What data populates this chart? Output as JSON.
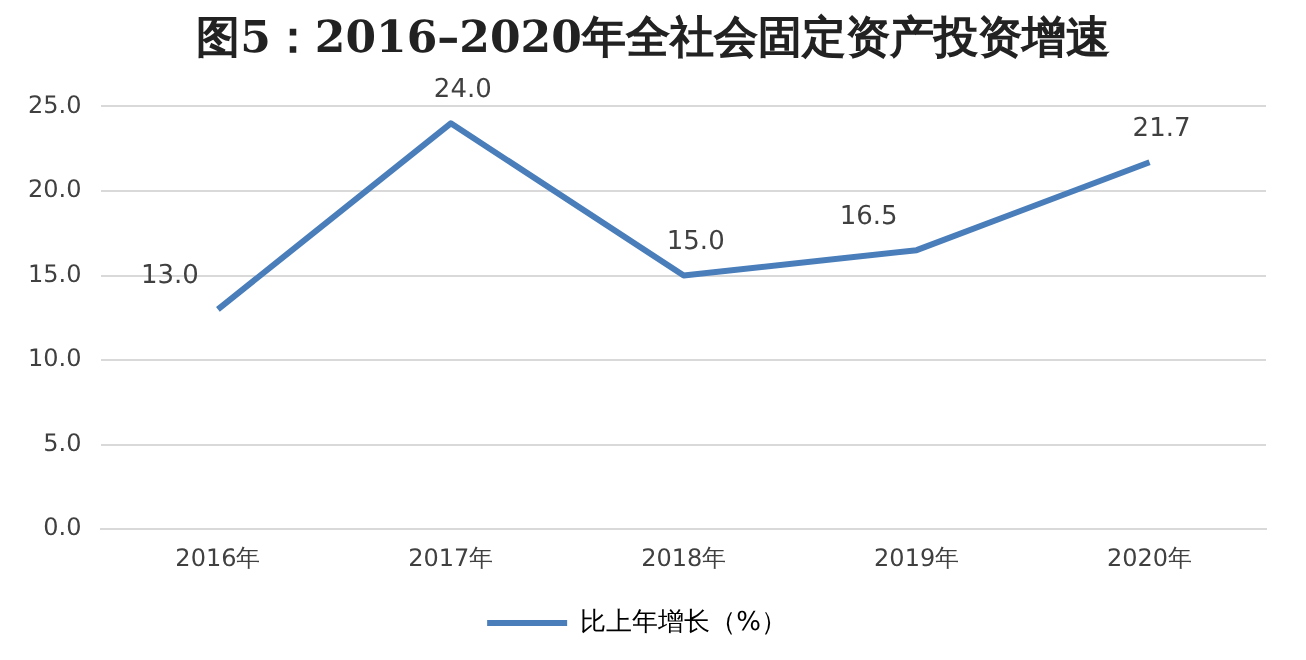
{
  "chart_data": {
    "type": "line",
    "title": "图5：2016–2020年全社会固定资产投资增速",
    "categories": [
      "2016年",
      "2017年",
      "2018年",
      "2019年",
      "2020年"
    ],
    "series": [
      {
        "name": "比上年增长（%）",
        "color": "#4a7ebb",
        "values": [
          13.0,
          24.0,
          15.0,
          16.5,
          21.7
        ],
        "value_labels": [
          "13.0",
          "24.0",
          "15.0",
          "16.5",
          "21.7"
        ]
      }
    ],
    "ylim": [
      0,
      25
    ],
    "yticks": [
      {
        "value": 0,
        "label": "0.0"
      },
      {
        "value": 5,
        "label": "5.0"
      },
      {
        "value": 10,
        "label": "10.0"
      },
      {
        "value": 15,
        "label": "15.0"
      },
      {
        "value": 20,
        "label": "20.0"
      },
      {
        "value": 25,
        "label": "25.0"
      }
    ],
    "grid": "y",
    "legend": "bottom",
    "marker": "none",
    "line_style": "solid"
  }
}
